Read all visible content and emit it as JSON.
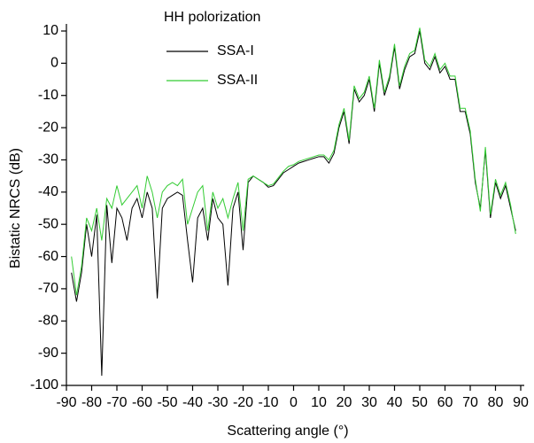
{
  "chart_data": {
    "type": "line",
    "title": "HH polorization",
    "x_label": "Scattering angle (°)",
    "y_label": "Bistatic NRCS (dB)",
    "x": [
      -88,
      -86,
      -84,
      -82,
      -80,
      -78,
      -76,
      -74,
      -72,
      -70,
      -68,
      -66,
      -64,
      -62,
      -60,
      -58,
      -56,
      -54,
      -52,
      -50,
      -48,
      -46,
      -44,
      -42,
      -40,
      -38,
      -36,
      -34,
      -32,
      -30,
      -28,
      -26,
      -24,
      -22,
      -20,
      -18,
      -16,
      -14,
      -12,
      -10,
      -8,
      -6,
      -4,
      -2,
      0,
      2,
      4,
      6,
      8,
      10,
      12,
      14,
      16,
      18,
      20,
      22,
      24,
      26,
      28,
      30,
      32,
      34,
      36,
      38,
      40,
      42,
      44,
      46,
      48,
      50,
      52,
      54,
      56,
      58,
      60,
      62,
      64,
      66,
      68,
      70,
      72,
      74,
      76,
      78,
      80,
      82,
      84,
      86,
      88
    ],
    "series": [
      {
        "name": "SSA-I",
        "color": "#000000",
        "values": [
          -65,
          -74,
          -65,
          -50,
          -60,
          -47,
          -97,
          -44,
          -62,
          -45,
          -48,
          -55,
          -45,
          -42,
          -48,
          -40,
          -45,
          -73,
          -45,
          -42,
          -41,
          -40,
          -41,
          -55,
          -68,
          -48,
          -45,
          -55,
          -42,
          -48,
          -50,
          -69,
          -45,
          -40,
          -58,
          -37,
          -35,
          -36,
          -37,
          -38.5,
          -38,
          -36,
          -34,
          -33,
          -32,
          -31,
          -30.5,
          -30,
          -29.5,
          -29,
          -29,
          -31,
          -28,
          -20,
          -15,
          -25,
          -8,
          -12,
          -10,
          -5,
          -15,
          0,
          -10,
          -5,
          5,
          -8,
          -2,
          2,
          3,
          10,
          0,
          -2,
          2,
          -3,
          -1,
          -5,
          -5,
          -15,
          -15,
          -22,
          -37,
          -45,
          -27,
          -48,
          -37,
          -42,
          -38,
          -45,
          -52
        ]
      },
      {
        "name": "SSA-II",
        "color": "#33cc33",
        "values": [
          -60,
          -72,
          -63,
          -48,
          -52,
          -45,
          -55,
          -42,
          -45,
          -38,
          -44,
          -42,
          -40,
          -38,
          -45,
          -35,
          -40,
          -48,
          -40,
          -38,
          -37,
          -38,
          -36,
          -50,
          -45,
          -40,
          -38,
          -52,
          -40,
          -45,
          -42,
          -48,
          -42,
          -37,
          -52,
          -36,
          -35,
          -36,
          -37,
          -38,
          -37.5,
          -35.5,
          -33.5,
          -32,
          -31.5,
          -30.5,
          -30,
          -29.5,
          -29,
          -28.5,
          -28.5,
          -30,
          -27,
          -19,
          -14,
          -24,
          -7,
          -11,
          -9,
          -4,
          -14,
          1,
          -9,
          -4,
          6,
          -7,
          -1,
          3,
          4,
          11,
          1,
          -1,
          3,
          -2,
          0,
          -4,
          -4,
          -14,
          -14,
          -21,
          -36,
          -46,
          -26,
          -47,
          -36,
          -41,
          -37,
          -44,
          -53
        ]
      }
    ],
    "xlim": [
      -90,
      90
    ],
    "xticks": [
      -90,
      -80,
      -70,
      -60,
      -50,
      -40,
      -30,
      -20,
      -10,
      0,
      10,
      20,
      30,
      40,
      50,
      60,
      70,
      80,
      90
    ],
    "ylim": [
      -100,
      10
    ],
    "yticks": [
      -100,
      -90,
      -80,
      -70,
      -60,
      -50,
      -40,
      -30,
      -20,
      -10,
      0,
      10
    ]
  }
}
